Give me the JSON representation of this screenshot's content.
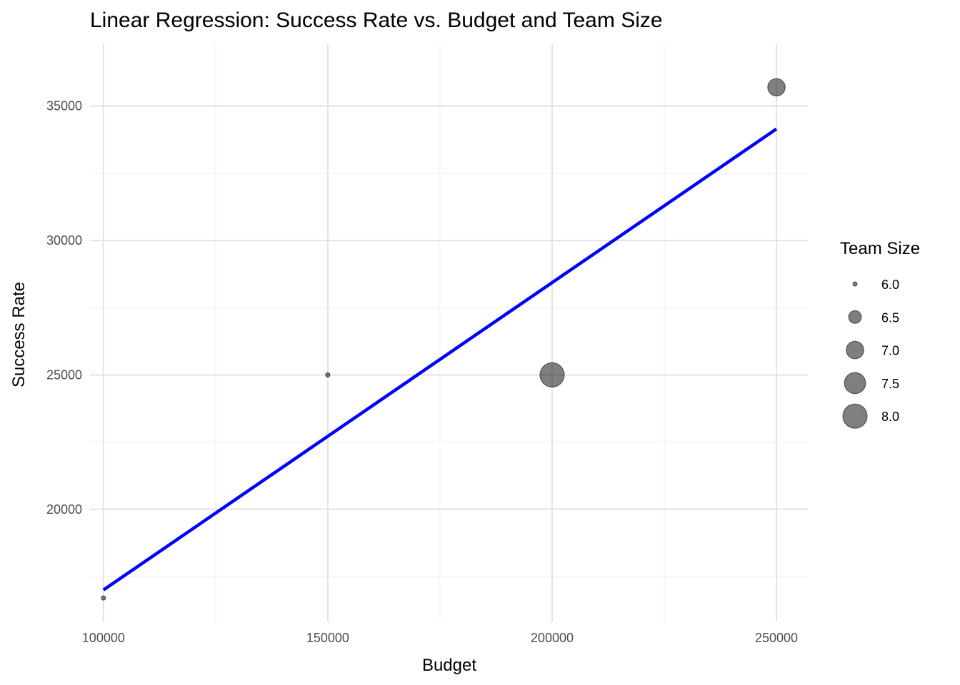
{
  "chart_data": {
    "type": "scatter",
    "title": "Linear Regression: Success Rate vs. Budget and Team Size",
    "xlabel": "Budget",
    "ylabel": "Success Rate",
    "xlim": [
      97000,
      257000
    ],
    "ylim": [
      15800,
      37300
    ],
    "x_ticks": [
      100000,
      150000,
      200000,
      250000
    ],
    "x_tick_labels": [
      "100000",
      "150000",
      "200000",
      "250000"
    ],
    "y_ticks": [
      20000,
      25000,
      30000,
      35000
    ],
    "y_tick_labels": [
      "20000",
      "25000",
      "30000",
      "35000"
    ],
    "x_minor_ticks": [
      125000,
      175000,
      225000
    ],
    "y_minor_ticks": [
      17500,
      22500,
      27500,
      32500
    ],
    "grid": true,
    "points": [
      {
        "x": 100000,
        "y": 16700,
        "team_size": 6
      },
      {
        "x": 150000,
        "y": 25000,
        "team_size": 6
      },
      {
        "x": 200000,
        "y": 25000,
        "team_size": 8
      },
      {
        "x": 250000,
        "y": 35700,
        "team_size": 7
      }
    ],
    "regression_line": {
      "x": [
        100000,
        250000
      ],
      "y": [
        17000,
        34150
      ],
      "color": "#0000ff"
    },
    "point_color": "#000000",
    "point_opacity": 0.5,
    "size_scale": {
      "min": 6,
      "max": 8
    },
    "legend": {
      "title": "Team Size",
      "position": "right",
      "entries": [
        {
          "label": "6.0",
          "value": 6.0
        },
        {
          "label": "6.5",
          "value": 6.5
        },
        {
          "label": "7.0",
          "value": 7.0
        },
        {
          "label": "7.5",
          "value": 7.5
        },
        {
          "label": "8.0",
          "value": 8.0
        }
      ]
    }
  }
}
